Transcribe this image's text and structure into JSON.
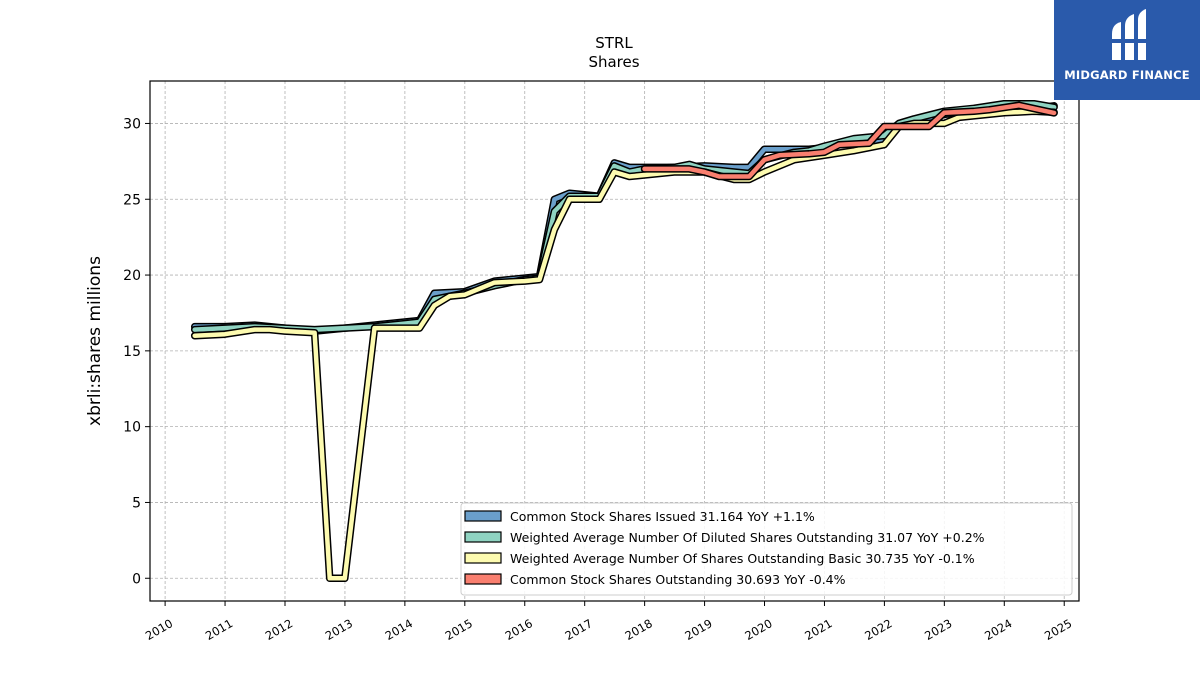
{
  "brand": {
    "name": "MIDGARD FINANCE",
    "color": "#2a5aab"
  },
  "chart_data": {
    "type": "line",
    "title": "STRL",
    "subtitle": "Shares",
    "ylabel": "xbrli:shares millions",
    "xlabel": "",
    "xlim": [
      "2009-10-01",
      "2025-04-01"
    ],
    "ylim": [
      -1.5,
      32.8
    ],
    "yticks": [
      0,
      5,
      10,
      15,
      20,
      25,
      30
    ],
    "xticks": [
      "2010",
      "2011",
      "2012",
      "2013",
      "2014",
      "2015",
      "2016",
      "2017",
      "2018",
      "2019",
      "2020",
      "2021",
      "2022",
      "2023",
      "2024",
      "2025"
    ],
    "grid": true,
    "legend_position": "lower-right",
    "series": [
      {
        "name": "Common Stock Shares Issued",
        "legend": "Common Stock Shares Issued  31.164 YoY +1.1%",
        "color": "#6a9fcb",
        "points": [
          [
            "2010-06-30",
            16.6
          ],
          [
            "2010-12-31",
            16.6
          ],
          [
            "2011-06-30",
            16.7
          ],
          [
            "2011-12-31",
            16.5
          ],
          [
            "2012-06-30",
            16.3
          ],
          [
            "2012-12-31",
            16.5
          ],
          [
            "2013-06-30",
            16.7
          ],
          [
            "2013-12-31",
            16.9
          ],
          [
            "2014-03-31",
            17.0
          ],
          [
            "2014-06-30",
            18.8
          ],
          [
            "2014-12-31",
            18.9
          ],
          [
            "2015-06-30",
            19.6
          ],
          [
            "2015-12-31",
            19.8
          ],
          [
            "2016-03-31",
            19.9
          ],
          [
            "2016-06-30",
            25.0
          ],
          [
            "2016-09-30",
            25.4
          ],
          [
            "2016-12-31",
            25.3
          ],
          [
            "2017-03-31",
            25.2
          ],
          [
            "2017-06-30",
            27.4
          ],
          [
            "2017-09-30",
            27.1
          ],
          [
            "2017-12-31",
            27.1
          ],
          [
            "2018-06-30",
            27.1
          ],
          [
            "2018-12-31",
            27.2
          ],
          [
            "2019-06-30",
            27.1
          ],
          [
            "2019-09-30",
            27.1
          ],
          [
            "2019-12-31",
            28.3
          ],
          [
            "2020-06-30",
            28.3
          ],
          [
            "2020-09-30",
            28.3
          ],
          [
            "2020-12-31",
            28.4
          ],
          [
            "2021-06-30",
            28.8
          ],
          [
            "2021-12-31",
            28.9
          ],
          [
            "2022-03-31",
            29.8
          ],
          [
            "2022-06-30",
            30.2
          ],
          [
            "2022-12-31",
            30.6
          ],
          [
            "2023-03-31",
            30.7
          ],
          [
            "2023-12-31",
            30.9
          ],
          [
            "2024-06-30",
            31.0
          ],
          [
            "2024-10-31",
            31.164
          ]
        ]
      },
      {
        "name": "Weighted Average Number Of Diluted Shares Outstanding",
        "legend": "Weighted Average Number Of Diluted Shares Outstanding  31.07 YoY +0.2%",
        "color": "#8fd3c1",
        "points": [
          [
            "2010-06-30",
            16.4
          ],
          [
            "2010-12-31",
            16.5
          ],
          [
            "2011-06-30",
            16.6
          ],
          [
            "2011-12-31",
            16.5
          ],
          [
            "2012-06-30",
            16.4
          ],
          [
            "2012-12-31",
            16.5
          ],
          [
            "2013-06-30",
            16.6
          ],
          [
            "2013-12-31",
            16.8
          ],
          [
            "2014-03-31",
            16.9
          ],
          [
            "2014-06-30",
            18.4
          ],
          [
            "2014-12-31",
            18.8
          ],
          [
            "2015-06-30",
            19.3
          ],
          [
            "2015-12-31",
            19.7
          ],
          [
            "2016-03-31",
            19.8
          ],
          [
            "2016-06-30",
            24.2
          ],
          [
            "2016-09-30",
            25.2
          ],
          [
            "2016-12-31",
            25.2
          ],
          [
            "2017-03-31",
            25.2
          ],
          [
            "2017-06-30",
            27.2
          ],
          [
            "2017-09-30",
            26.8
          ],
          [
            "2017-12-31",
            27.0
          ],
          [
            "2018-06-30",
            27.1
          ],
          [
            "2018-09-30",
            27.3
          ],
          [
            "2018-12-31",
            27.0
          ],
          [
            "2019-06-30",
            26.8
          ],
          [
            "2019-09-30",
            26.7
          ],
          [
            "2019-12-31",
            27.6
          ],
          [
            "2020-06-30",
            28.1
          ],
          [
            "2020-09-30",
            28.2
          ],
          [
            "2020-12-31",
            28.5
          ],
          [
            "2021-06-30",
            29.0
          ],
          [
            "2021-12-31",
            29.2
          ],
          [
            "2022-03-31",
            30.0
          ],
          [
            "2022-06-30",
            30.3
          ],
          [
            "2022-12-31",
            30.8
          ],
          [
            "2023-06-30",
            31.0
          ],
          [
            "2023-12-31",
            31.3
          ],
          [
            "2024-06-30",
            31.3
          ],
          [
            "2024-10-31",
            31.07
          ]
        ]
      },
      {
        "name": "Weighted Average Number Of Shares Outstanding Basic",
        "legend": "Weighted Average Number Of Shares Outstanding Basic  30.735 YoY -0.1%",
        "color": "#fdfbb0",
        "points": [
          [
            "2010-06-30",
            16.0
          ],
          [
            "2010-12-31",
            16.1
          ],
          [
            "2011-06-30",
            16.4
          ],
          [
            "2011-09-30",
            16.4
          ],
          [
            "2011-12-31",
            16.3
          ],
          [
            "2012-06-30",
            16.2
          ],
          [
            "2012-09-30",
            0.0
          ],
          [
            "2012-12-31",
            0.0
          ],
          [
            "2013-06-30",
            16.5
          ],
          [
            "2013-12-31",
            16.5
          ],
          [
            "2014-03-31",
            16.5
          ],
          [
            "2014-06-30",
            18.0
          ],
          [
            "2014-09-30",
            18.6
          ],
          [
            "2014-12-31",
            18.7
          ],
          [
            "2015-06-30",
            19.5
          ],
          [
            "2015-12-31",
            19.6
          ],
          [
            "2016-03-31",
            19.7
          ],
          [
            "2016-06-30",
            23.0
          ],
          [
            "2016-09-30",
            25.0
          ],
          [
            "2016-12-31",
            25.0
          ],
          [
            "2017-03-31",
            25.0
          ],
          [
            "2017-06-30",
            26.8
          ],
          [
            "2017-09-30",
            26.5
          ],
          [
            "2017-12-31",
            26.6
          ],
          [
            "2018-06-30",
            26.8
          ],
          [
            "2018-12-31",
            26.8
          ],
          [
            "2019-06-30",
            26.3
          ],
          [
            "2019-09-30",
            26.3
          ],
          [
            "2019-12-31",
            26.8
          ],
          [
            "2020-06-30",
            27.6
          ],
          [
            "2020-12-31",
            27.9
          ],
          [
            "2021-06-30",
            28.2
          ],
          [
            "2021-12-31",
            28.6
          ],
          [
            "2022-03-31",
            29.8
          ],
          [
            "2022-06-30",
            30.0
          ],
          [
            "2022-12-31",
            30.0
          ],
          [
            "2023-03-31",
            30.4
          ],
          [
            "2023-12-31",
            30.7
          ],
          [
            "2024-06-30",
            30.8
          ],
          [
            "2024-10-31",
            30.735
          ]
        ]
      },
      {
        "name": "Common Stock Shares Outstanding",
        "legend": "Common Stock Shares Outstanding  30.693 YoY -0.4%",
        "color": "#f97f6f",
        "points": [
          [
            "2017-12-31",
            27.0
          ],
          [
            "2018-06-30",
            27.0
          ],
          [
            "2018-09-30",
            27.0
          ],
          [
            "2018-12-31",
            26.8
          ],
          [
            "2019-03-31",
            26.5
          ],
          [
            "2019-09-30",
            26.5
          ],
          [
            "2019-12-31",
            27.6
          ],
          [
            "2020-03-31",
            27.9
          ],
          [
            "2020-09-30",
            28.0
          ],
          [
            "2020-12-31",
            28.1
          ],
          [
            "2021-03-31",
            28.6
          ],
          [
            "2021-09-30",
            28.7
          ],
          [
            "2021-12-31",
            29.8
          ],
          [
            "2022-06-30",
            29.8
          ],
          [
            "2022-09-30",
            29.8
          ],
          [
            "2022-12-31",
            30.7
          ],
          [
            "2023-06-30",
            30.8
          ],
          [
            "2023-09-30",
            30.9
          ],
          [
            "2024-03-31",
            31.2
          ],
          [
            "2024-10-31",
            30.693
          ]
        ]
      }
    ]
  }
}
